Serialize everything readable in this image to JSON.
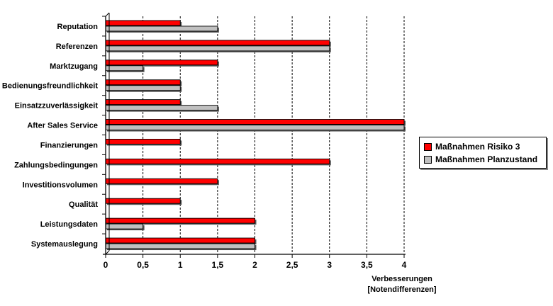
{
  "chart_data": {
    "type": "bar",
    "orientation": "horizontal",
    "categories": [
      "Reputation",
      "Referenzen",
      "Marktzugang",
      "Bedienungsfreundlichkeit",
      "Einsatzzuverlässigkeit",
      "After Sales Service",
      "Finanzierungen",
      "Zahlungsbedingungen",
      "Investitionsvolumen",
      "Qualität",
      "Leistungsdaten",
      "Systemauslegung"
    ],
    "series": [
      {
        "name": "Maßnahmen Risiko 3",
        "color": "#ff0000",
        "values": [
          1,
          3,
          1.5,
          1,
          1,
          4,
          1,
          3,
          1.5,
          1,
          2,
          2
        ]
      },
      {
        "name": "Maßnahmen Planzustand",
        "color": "#c0c0c0",
        "values": [
          1.5,
          3,
          0.5,
          1,
          1.5,
          4,
          0,
          0,
          0,
          0,
          0.5,
          2
        ]
      }
    ],
    "xlabel_lines": [
      "Verbesserungen",
      "[Notendifferenzen]"
    ],
    "xlim": [
      0,
      4
    ],
    "xticks": [
      0,
      0.5,
      1,
      1.5,
      2,
      2.5,
      3,
      3.5,
      4
    ],
    "xtick_labels": [
      "0",
      "0,5",
      "1",
      "1,5",
      "2",
      "2,5",
      "3",
      "3,5",
      "4"
    ],
    "grid": "vertical dashed",
    "legend_position": "right"
  }
}
